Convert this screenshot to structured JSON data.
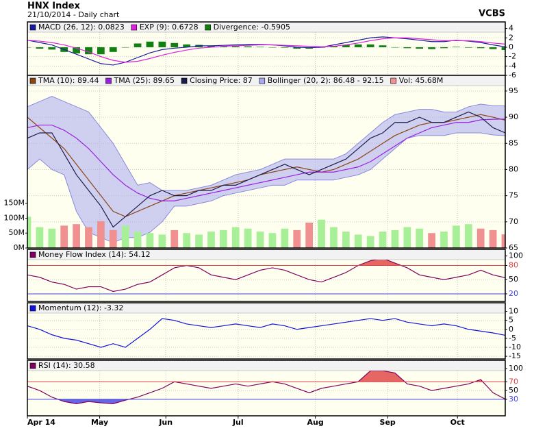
{
  "header": {
    "title": "HNX Index",
    "subtitle": "21/10/2014 - Daily chart",
    "brand": "VCBS"
  },
  "chart_data": [
    {
      "type": "line",
      "ylim": [
        -6,
        5.4
      ],
      "yticks": [
        4,
        2,
        0,
        -2,
        -4,
        -6
      ],
      "series": [
        {
          "name": "MACD (26, 12): 0.0823",
          "color": "#1a1aa0",
          "values": [
            1.5,
            1,
            0.5,
            -0.5,
            -1.5,
            -2.5,
            -3.5,
            -3.8,
            -3.2,
            -2.2,
            -1.2,
            -0.5,
            -0.2,
            0,
            0.3,
            0.3,
            0.4,
            0.5,
            0.6,
            0.6,
            0.5,
            0.3,
            0,
            -0.1,
            0,
            0.5,
            1,
            1.5,
            2,
            2.2,
            2,
            1.8,
            1.5,
            1.2,
            1.2,
            1.5,
            1.3,
            1,
            0.5,
            0.08
          ]
        },
        {
          "name": "EXP (9): 0.6728",
          "color": "#e020e0",
          "values": [
            1.5,
            1.3,
            1,
            0.5,
            -0.2,
            -1,
            -2,
            -2.8,
            -3.2,
            -3,
            -2.4,
            -1.7,
            -1.1,
            -0.6,
            -0.2,
            0,
            0.2,
            0.3,
            0.4,
            0.5,
            0.5,
            0.4,
            0.3,
            0.2,
            0.1,
            0.2,
            0.5,
            0.9,
            1.4,
            1.8,
            2,
            2,
            1.8,
            1.6,
            1.4,
            1.4,
            1.4,
            1.2,
            0.9,
            0.67
          ]
        },
        {
          "name": "Divergence: -0.5905",
          "type": "bar",
          "color": "#108010",
          "values": [
            0,
            -0.3,
            -0.5,
            -1,
            -1.3,
            -1.5,
            -1.5,
            -1,
            0,
            0.8,
            1.2,
            1.2,
            0.9,
            0.6,
            0.5,
            0.3,
            0.2,
            0.2,
            0.2,
            0.1,
            0,
            -0.1,
            -0.3,
            -0.3,
            -0.1,
            0.3,
            0.5,
            0.6,
            0.6,
            0.4,
            0,
            -0.2,
            -0.3,
            -0.4,
            -0.2,
            0.1,
            -0.1,
            -0.2,
            -0.4,
            -0.59
          ]
        }
      ]
    },
    {
      "type": "line",
      "ylim": [
        65,
        98
      ],
      "yticks": [
        95,
        90,
        85,
        80,
        75,
        70,
        65
      ],
      "y2lim": [
        0,
        579
      ],
      "y2ticks": [
        {
          "value": 150,
          "label": "150M"
        },
        {
          "value": 100,
          "label": "100M"
        },
        {
          "value": 50,
          "label": "50M"
        },
        {
          "value": 0,
          "label": "0M"
        }
      ],
      "series": [
        {
          "name": "TMA (10): 89.44",
          "color": "#8b4513",
          "values": [
            90,
            88,
            86,
            84,
            81,
            78,
            75,
            72,
            71,
            72,
            73,
            74,
            75,
            75.5,
            76,
            76.5,
            77,
            77.5,
            78,
            79,
            79.5,
            80,
            80.5,
            80,
            79.5,
            80,
            81,
            82,
            83.5,
            85,
            86.5,
            87.5,
            88.5,
            89,
            89,
            89.5,
            90,
            90.5,
            90,
            89.44
          ]
        },
        {
          "name": "TMA (25): 89.65",
          "color": "#9a20e0",
          "values": [
            88,
            88.5,
            88.5,
            87.5,
            86,
            84,
            81.5,
            79,
            77,
            75.5,
            74.5,
            74,
            74,
            74.5,
            75,
            75.5,
            76,
            76.5,
            77,
            77.5,
            78,
            78.5,
            79,
            79.5,
            79.5,
            79.5,
            80,
            80.5,
            81.5,
            83,
            84.5,
            86,
            87,
            88,
            88.5,
            89,
            89,
            89.5,
            89.6,
            89.65
          ]
        },
        {
          "name": "Closing Price: 87",
          "color": "#1c1c4c",
          "values": [
            86,
            87,
            87,
            83,
            79,
            76,
            73,
            69,
            71,
            73,
            75,
            76,
            75,
            75,
            76,
            76,
            77,
            77,
            78,
            79,
            80,
            81,
            80,
            79,
            80,
            81,
            82,
            84,
            86,
            87,
            89,
            89,
            90,
            89,
            89,
            90,
            91,
            90,
            88,
            87
          ]
        },
        {
          "name": "Bollinger (20, 2): 86.48 - 92.15",
          "type": "band",
          "color": "#a8a8f0",
          "upper": [
            92,
            93,
            94,
            93,
            92,
            91,
            88,
            85,
            81,
            77,
            77.5,
            76,
            76,
            76,
            76.5,
            77,
            78,
            79,
            79.5,
            80,
            81,
            82,
            82,
            82,
            82,
            82,
            83,
            85,
            87,
            89,
            90.5,
            91,
            91.5,
            91.5,
            91,
            91,
            92,
            92.5,
            92.2,
            92.15
          ],
          "lower": [
            80,
            82,
            80,
            79,
            72,
            68,
            67,
            66,
            67,
            67,
            68,
            70,
            73,
            73,
            73.5,
            74,
            75,
            75.5,
            76,
            76.5,
            77,
            77,
            78,
            78,
            78,
            78,
            78.5,
            79,
            80,
            82,
            84,
            86,
            86.5,
            86.5,
            86.5,
            87,
            87,
            87,
            86.6,
            86.48
          ]
        },
        {
          "name": "Vol: 45.68M",
          "type": "volume",
          "axis": "y2",
          "color": "#f09090",
          "up_color": "#a8f098",
          "down_color": "#f09090",
          "values": [
            105,
            70,
            65,
            75,
            80,
            70,
            90,
            60,
            75,
            55,
            50,
            45,
            60,
            50,
            45,
            55,
            60,
            70,
            65,
            55,
            50,
            65,
            60,
            85,
            95,
            70,
            55,
            45,
            40,
            55,
            60,
            70,
            65,
            50,
            55,
            75,
            80,
            65,
            60,
            45.68
          ]
        }
      ]
    },
    {
      "type": "line",
      "ylim": [
        4,
        114
      ],
      "yticks": [
        100,
        80,
        50,
        20
      ],
      "refs": [
        {
          "value": 80,
          "color": "#e04040",
          "fill": "above"
        },
        {
          "value": 20,
          "color": "#4040e0",
          "fill": "below"
        }
      ],
      "series": [
        {
          "name": "Money Flow Index (14): 54.12",
          "color": "#800060",
          "values": [
            60,
            55,
            45,
            40,
            30,
            35,
            35,
            25,
            30,
            40,
            45,
            60,
            75,
            80,
            75,
            60,
            55,
            50,
            60,
            70,
            75,
            70,
            60,
            50,
            45,
            55,
            65,
            80,
            90,
            95,
            85,
            75,
            60,
            55,
            50,
            55,
            60,
            70,
            60,
            54.12
          ]
        }
      ]
    },
    {
      "type": "line",
      "ylim": [
        -16.5,
        14.8
      ],
      "yticks": [
        10,
        5,
        0,
        -5,
        -10,
        -15
      ],
      "series": [
        {
          "name": "Momentum (12): -3.32",
          "color": "#1010e0",
          "values": [
            2,
            0,
            -3,
            -5,
            -6,
            -8,
            -10,
            -8,
            -10,
            -5,
            0,
            6,
            5,
            3,
            2,
            1,
            2,
            3,
            2,
            1,
            3,
            2,
            0,
            1,
            2,
            3,
            4,
            5,
            6,
            5,
            6,
            4,
            3,
            2,
            3,
            2,
            0,
            -1,
            -2,
            -3.32
          ]
        }
      ]
    },
    {
      "type": "line",
      "ylim": [
        -7.5,
        118.7
      ],
      "yticks": [
        100,
        70,
        50,
        30
      ],
      "refs": [
        {
          "value": 70,
          "color": "#e04040",
          "fill": "above"
        },
        {
          "value": 30,
          "color": "#4040e0",
          "fill": "below"
        }
      ],
      "xlim": [
        0,
        39
      ],
      "xticks": [
        {
          "value": 0,
          "label": "Apr 14"
        },
        {
          "value": 5.9,
          "label": "May"
        },
        {
          "value": 11.3,
          "label": "Jun"
        },
        {
          "value": 17.2,
          "label": "Jul"
        },
        {
          "value": 23.5,
          "label": "Aug"
        },
        {
          "value": 29.4,
          "label": "Sep"
        },
        {
          "value": 35.1,
          "label": "Oct"
        }
      ],
      "series": [
        {
          "name": "RSI (14): 30.58",
          "color": "#800060",
          "values": [
            60,
            50,
            35,
            25,
            20,
            25,
            22,
            20,
            28,
            35,
            45,
            55,
            70,
            65,
            60,
            55,
            60,
            65,
            60,
            65,
            70,
            65,
            55,
            45,
            55,
            60,
            65,
            70,
            95,
            95,
            90,
            65,
            60,
            50,
            55,
            60,
            65,
            75,
            45,
            30.58
          ]
        }
      ]
    }
  ]
}
